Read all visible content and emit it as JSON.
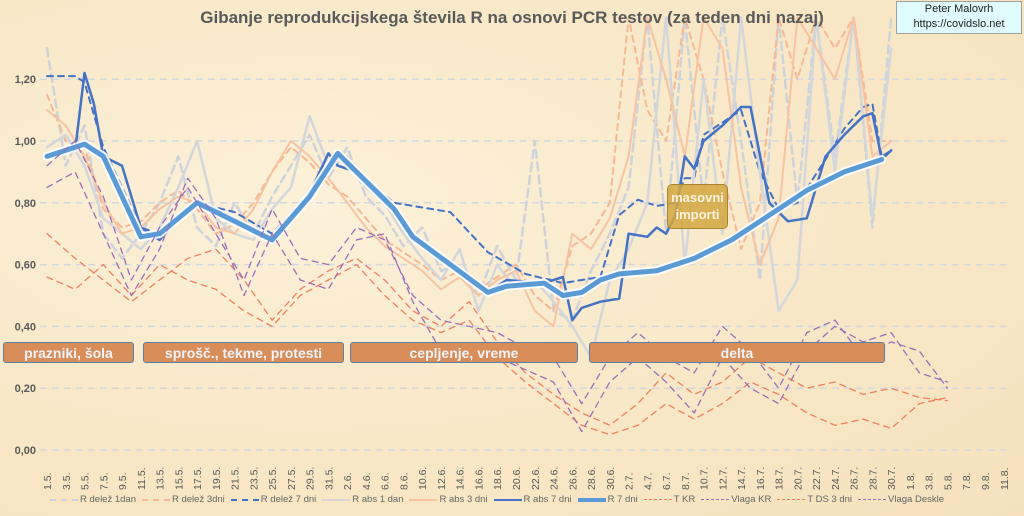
{
  "title": "Gibanje reprodukcijskega števila R na osnovi PCR testov (za teden dni nazaj)",
  "credit": {
    "name": "Peter Malovrh",
    "url": "https://covidslo.net"
  },
  "annotations": {
    "periods": [
      "prazniki, šola",
      "sprošč., tekme, protesti",
      "cepljenje, vreme",
      "delta"
    ],
    "imports_line1": "masovni",
    "imports_line2": "importi"
  },
  "chart_data": {
    "type": "line",
    "title": "Gibanje reprodukcijskega števila R na osnovi PCR testov (za teden dni nazaj)",
    "xlabel": "",
    "ylabel": "",
    "ylim": [
      0,
      1.4
    ],
    "grid": true,
    "legend_position": "bottom",
    "x_unit": "day index from 1.5.",
    "x_ticks": [
      "1.5.",
      "3.5.",
      "5.5.",
      "7.5.",
      "9.5.",
      "11.5.",
      "13.5.",
      "15.5.",
      "17.5.",
      "19.5.",
      "21.5.",
      "23.5.",
      "25.5.",
      "27.5.",
      "29.5.",
      "31.5.",
      "2.6.",
      "4.6.",
      "6.6.",
      "8.6.",
      "10.6.",
      "12.6.",
      "14.6.",
      "16.6.",
      "18.6.",
      "20.6.",
      "22.6.",
      "24.6.",
      "26.6.",
      "28.6.",
      "30.6.",
      "2.7.",
      "4.7.",
      "6.7.",
      "8.7.",
      "10.7.",
      "12.7.",
      "14.7.",
      "16.7.",
      "18.7.",
      "20.7.",
      "22.7.",
      "24.7.",
      "26.7.",
      "28.7.",
      "30.7.",
      "1.8.",
      "3.8.",
      "5.8.",
      "7.8.",
      "9.8.",
      "11.8."
    ],
    "y_ticks": [
      "0,00",
      "0,20",
      "0,40",
      "0,60",
      "0,80",
      "1,00",
      "1,20"
    ],
    "y_tick_values": [
      0,
      0.2,
      0.4,
      0.6,
      0.8,
      1.0,
      1.2
    ],
    "series": [
      {
        "name": "R delež 1dan",
        "color": "#cfd3d9",
        "style": "dash",
        "width": 2.5,
        "start": 0,
        "step": 2,
        "values": [
          1.3,
          0.92,
          1.05,
          0.7,
          0.62,
          0.7,
          0.8,
          0.95,
          0.72,
          0.66,
          0.8,
          0.7,
          0.82,
          0.92,
          1.02,
          0.88,
          0.98,
          0.82,
          0.76,
          0.66,
          0.72,
          0.58,
          0.6,
          0.5,
          0.66,
          0.55,
          1.0,
          0.45,
          0.42,
          0.58,
          0.7,
          0.85,
          1.4,
          0.7,
          1.4,
          0.8,
          1.4,
          1.0,
          0.55,
          1.4,
          0.8,
          1.4,
          0.95,
          1.4,
          0.72,
          1.4
        ]
      },
      {
        "name": "R delež 3dni",
        "color": "#f6b895",
        "style": "dash",
        "width": 2,
        "start": 0,
        "step": 2,
        "values": [
          1.15,
          1.0,
          0.98,
          0.78,
          0.72,
          0.74,
          0.8,
          0.84,
          0.78,
          0.7,
          0.73,
          0.8,
          0.9,
          0.98,
          0.93,
          0.86,
          0.82,
          0.75,
          0.68,
          0.64,
          0.6,
          0.55,
          0.58,
          0.52,
          0.56,
          0.6,
          0.5,
          0.45,
          0.66,
          0.7,
          0.8,
          1.4,
          1.1,
          1.0,
          1.4,
          1.2,
          0.9,
          0.65,
          0.8,
          1.4,
          1.2,
          1.4,
          1.3,
          1.4,
          1.0,
          1.0
        ]
      },
      {
        "name": "R delež 7 dni",
        "color": "#4472c4",
        "style": "dash",
        "width": 2,
        "points": [
          [
            0,
            1.21
          ],
          [
            3,
            1.21
          ],
          [
            4,
            1.19
          ],
          [
            6,
            0.98
          ],
          [
            10,
            0.72
          ],
          [
            12,
            0.7
          ],
          [
            16,
            0.8
          ],
          [
            20,
            0.77
          ],
          [
            24,
            0.7
          ],
          [
            28,
            0.83
          ],
          [
            30,
            0.96
          ],
          [
            33,
            0.9
          ],
          [
            37,
            0.8
          ],
          [
            39,
            0.79
          ],
          [
            43,
            0.77
          ],
          [
            47,
            0.64
          ],
          [
            51,
            0.57
          ],
          [
            55,
            0.54
          ],
          [
            57,
            0.55
          ],
          [
            59,
            0.56
          ],
          [
            61,
            0.76
          ],
          [
            63,
            0.81
          ],
          [
            65,
            0.79
          ],
          [
            67,
            0.8
          ],
          [
            68,
            0.88
          ],
          [
            69,
            0.88
          ],
          [
            70,
            1.02
          ],
          [
            72,
            1.06
          ],
          [
            74,
            1.1
          ],
          [
            76,
            0.9
          ],
          [
            78,
            0.78
          ],
          [
            80,
            0.8
          ],
          [
            83,
            0.94
          ],
          [
            85,
            1.04
          ],
          [
            87,
            1.11
          ],
          [
            88,
            1.12
          ],
          [
            89,
            0.95
          ],
          [
            90,
            0.97
          ]
        ]
      },
      {
        "name": "R abs 1 dan",
        "color": "#d4d6da",
        "style": "solid",
        "width": 2.5,
        "start": 0,
        "step": 2,
        "values": [
          0.98,
          1.02,
          0.92,
          0.75,
          0.7,
          0.65,
          0.72,
          0.85,
          1.0,
          0.75,
          0.7,
          0.68,
          0.78,
          0.85,
          1.08,
          0.92,
          0.95,
          0.85,
          0.8,
          0.7,
          0.62,
          0.55,
          0.65,
          0.45,
          0.6,
          0.52,
          0.55,
          0.48,
          0.4,
          0.3,
          0.55,
          0.65,
          0.8,
          1.4,
          0.6,
          1.2,
          0.7,
          1.4,
          0.9,
          0.45,
          0.55,
          1.4,
          0.9,
          1.4,
          0.75,
          1.3
        ]
      },
      {
        "name": "R abs 3 dni",
        "color": "#f7c3a3",
        "style": "solid",
        "width": 2,
        "start": 0,
        "step": 2,
        "values": [
          1.1,
          1.05,
          0.95,
          0.8,
          0.7,
          0.72,
          0.78,
          0.82,
          0.8,
          0.72,
          0.7,
          0.78,
          0.9,
          1.0,
          0.95,
          0.88,
          0.8,
          0.72,
          0.66,
          0.62,
          0.58,
          0.52,
          0.56,
          0.5,
          0.55,
          0.58,
          0.45,
          0.4,
          0.7,
          0.65,
          0.75,
          0.95,
          1.4,
          1.2,
          0.95,
          1.4,
          1.3,
          0.85,
          0.6,
          0.75,
          1.4,
          1.3,
          1.2,
          1.4,
          0.95,
          1.0
        ]
      },
      {
        "name": "R abs 7 dni",
        "color": "#4472c4",
        "style": "solid",
        "width": 2.5,
        "points": [
          [
            0,
            0.95
          ],
          [
            3,
            0.97
          ],
          [
            4,
            1.22
          ],
          [
            5,
            1.12
          ],
          [
            6,
            0.95
          ],
          [
            8,
            0.92
          ],
          [
            10,
            0.72
          ],
          [
            12,
            0.68
          ],
          [
            16,
            0.81
          ],
          [
            20,
            0.75
          ],
          [
            24,
            0.68
          ],
          [
            28,
            0.83
          ],
          [
            30,
            0.96
          ],
          [
            31,
            0.92
          ],
          [
            33,
            0.9
          ],
          [
            37,
            0.78
          ],
          [
            39,
            0.68
          ],
          [
            43,
            0.61
          ],
          [
            47,
            0.51
          ],
          [
            49,
            0.55
          ],
          [
            53,
            0.54
          ],
          [
            55,
            0.56
          ],
          [
            56,
            0.42
          ],
          [
            57,
            0.46
          ],
          [
            59,
            0.48
          ],
          [
            61,
            0.49
          ],
          [
            62,
            0.7
          ],
          [
            64,
            0.69
          ],
          [
            65,
            0.72
          ],
          [
            66,
            0.7
          ],
          [
            67,
            0.76
          ],
          [
            68,
            0.95
          ],
          [
            69,
            0.91
          ],
          [
            70,
            1.0
          ],
          [
            72,
            1.05
          ],
          [
            74,
            1.11
          ],
          [
            75,
            1.11
          ],
          [
            77,
            0.8
          ],
          [
            79,
            0.74
          ],
          [
            81,
            0.75
          ],
          [
            83,
            0.95
          ],
          [
            85,
            1.02
          ],
          [
            87,
            1.08
          ],
          [
            88,
            1.09
          ],
          [
            89,
            0.94
          ],
          [
            90,
            0.97
          ]
        ]
      },
      {
        "name": "R 7 dni",
        "color": "#5b9bd5",
        "style": "solid",
        "width": 5,
        "points": [
          [
            0,
            0.95
          ],
          [
            4,
            0.99
          ],
          [
            6,
            0.95
          ],
          [
            10,
            0.69
          ],
          [
            12,
            0.7
          ],
          [
            16,
            0.8
          ],
          [
            20,
            0.74
          ],
          [
            24,
            0.68
          ],
          [
            28,
            0.82
          ],
          [
            31,
            0.96
          ],
          [
            33,
            0.9
          ],
          [
            37,
            0.78
          ],
          [
            39,
            0.69
          ],
          [
            43,
            0.6
          ],
          [
            47,
            0.51
          ],
          [
            49,
            0.53
          ],
          [
            53,
            0.54
          ],
          [
            55,
            0.5
          ],
          [
            57,
            0.51
          ],
          [
            59,
            0.55
          ],
          [
            61,
            0.57
          ],
          [
            65,
            0.58
          ],
          [
            69,
            0.62
          ],
          [
            73,
            0.68
          ],
          [
            77,
            0.76
          ],
          [
            81,
            0.84
          ],
          [
            85,
            0.9
          ],
          [
            89,
            0.94
          ]
        ]
      },
      {
        "name": "T KR",
        "color": "#f08060",
        "style": "dash",
        "width": 1.3,
        "start": 0,
        "step": 3,
        "values": [
          0.7,
          0.62,
          0.55,
          0.48,
          0.55,
          0.62,
          0.65,
          0.55,
          0.42,
          0.52,
          0.58,
          0.62,
          0.55,
          0.45,
          0.4,
          0.48,
          0.35,
          0.25,
          0.18,
          0.12,
          0.08,
          0.15,
          0.25,
          0.18,
          0.22,
          0.3,
          0.25,
          0.2,
          0.22,
          0.18,
          0.2,
          0.17,
          0.16
        ]
      },
      {
        "name": "Vlaga KR",
        "color": "#9b6fb5",
        "style": "dash",
        "width": 1.3,
        "start": 0,
        "step": 3,
        "values": [
          0.92,
          1.0,
          0.82,
          0.55,
          0.72,
          0.85,
          0.7,
          0.55,
          0.78,
          0.62,
          0.6,
          0.72,
          0.68,
          0.5,
          0.42,
          0.4,
          0.38,
          0.33,
          0.3,
          0.15,
          0.3,
          0.38,
          0.3,
          0.25,
          0.4,
          0.32,
          0.2,
          0.38,
          0.42,
          0.3,
          0.35,
          0.32,
          0.2
        ]
      },
      {
        "name": "T DS 3 dni",
        "color": "#f08060",
        "style": "dash",
        "width": 1.3,
        "start": 0,
        "step": 3,
        "values": [
          0.56,
          0.52,
          0.6,
          0.5,
          0.6,
          0.55,
          0.52,
          0.45,
          0.4,
          0.5,
          0.55,
          0.6,
          0.5,
          0.42,
          0.38,
          0.42,
          0.3,
          0.22,
          0.15,
          0.08,
          0.05,
          0.08,
          0.15,
          0.1,
          0.15,
          0.22,
          0.18,
          0.12,
          0.08,
          0.1,
          0.07,
          0.15,
          0.17
        ]
      },
      {
        "name": "Vlaga Deskle",
        "color": "#9b6fb5",
        "style": "dash",
        "width": 1.3,
        "start": 0,
        "step": 3,
        "values": [
          0.85,
          0.9,
          0.7,
          0.5,
          0.65,
          0.88,
          0.75,
          0.5,
          0.7,
          0.55,
          0.52,
          0.68,
          0.7,
          0.48,
          0.32,
          0.3,
          0.3,
          0.26,
          0.22,
          0.06,
          0.22,
          0.3,
          0.22,
          0.12,
          0.3,
          0.2,
          0.15,
          0.32,
          0.4,
          0.35,
          0.38,
          0.25,
          0.22
        ]
      }
    ]
  }
}
